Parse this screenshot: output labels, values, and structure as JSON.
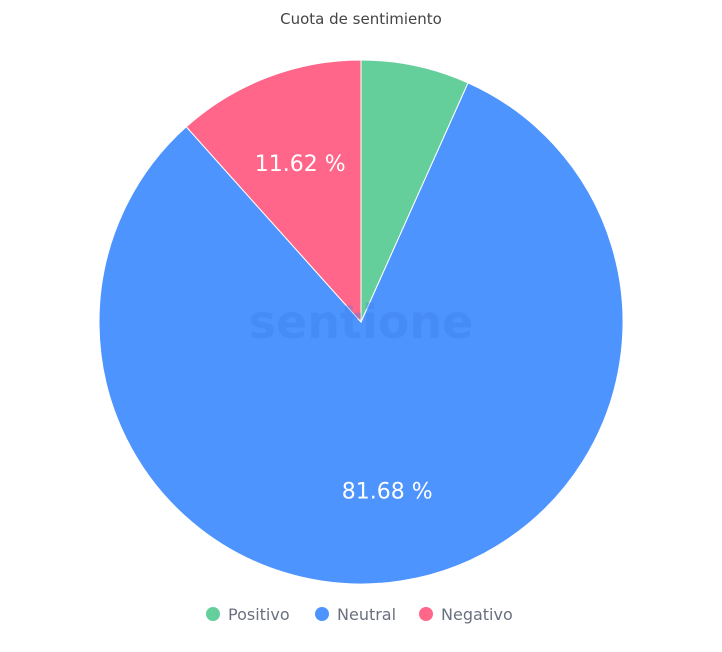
{
  "chart_data": {
    "type": "pie",
    "title": "Cuota de sentimiento",
    "start_angle": "top",
    "direction": "clockwise",
    "slices": [
      {
        "name": "Positivo",
        "value": 6.7,
        "color": "#64cf9b",
        "label": ""
      },
      {
        "name": "Neutral",
        "value": 81.68,
        "color": "#4d94ff",
        "label": "81.68 %"
      },
      {
        "name": "Negativo",
        "value": 11.62,
        "color": "#ff668a",
        "label": "11.62 %"
      }
    ],
    "legend_position": "bottom",
    "watermark": "sentione"
  }
}
